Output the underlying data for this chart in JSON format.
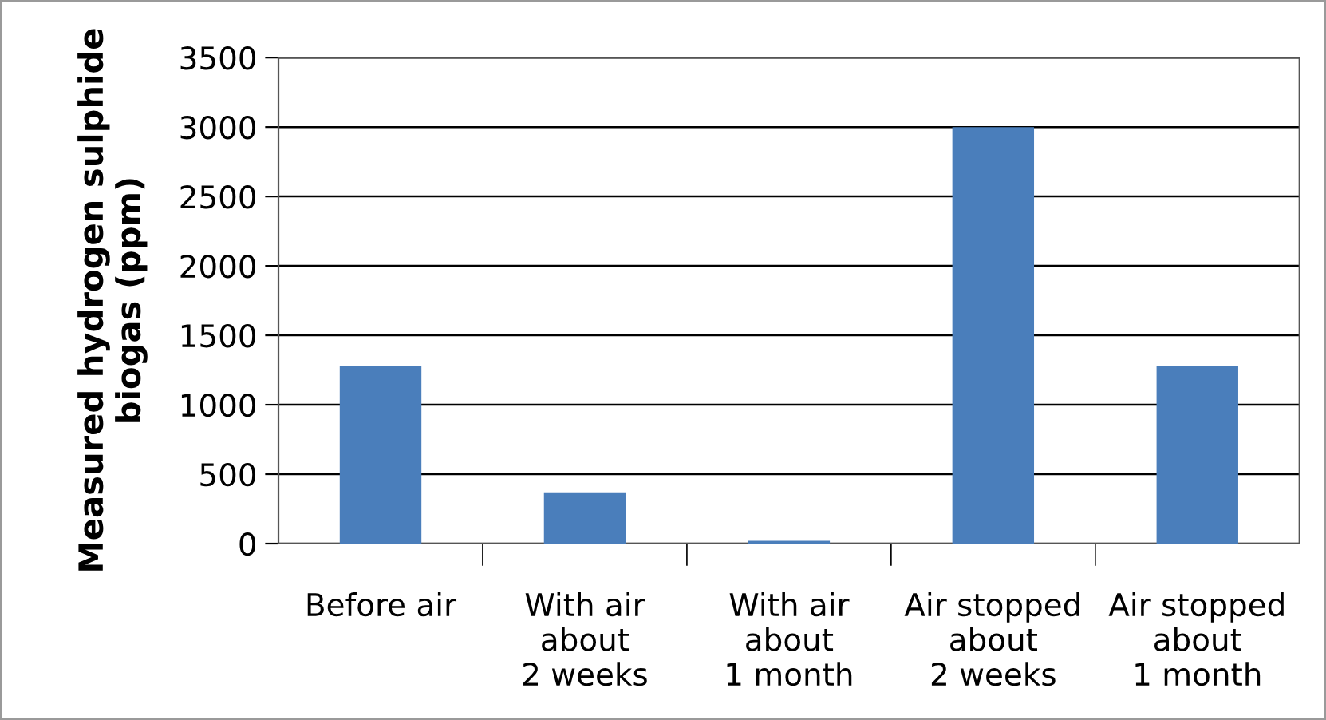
{
  "chart_data": {
    "type": "bar",
    "ylabel": "Measured hydrogen sulphide\nbiogas (ppm)",
    "categories": [
      "Before air",
      "With air\nabout\n2 weeks",
      "With air\nabout\n1 month",
      "Air stopped\nabout\n2 weeks",
      "Air stopped\nabout\n1 month"
    ],
    "values": [
      1280,
      370,
      20,
      3000,
      1280
    ],
    "color": "#4a7ebb",
    "ylim": [
      0,
      3500
    ],
    "yticks": [
      0,
      500,
      1000,
      1500,
      2000,
      2500,
      3000,
      3500
    ],
    "grid": "y",
    "legend": false
  }
}
